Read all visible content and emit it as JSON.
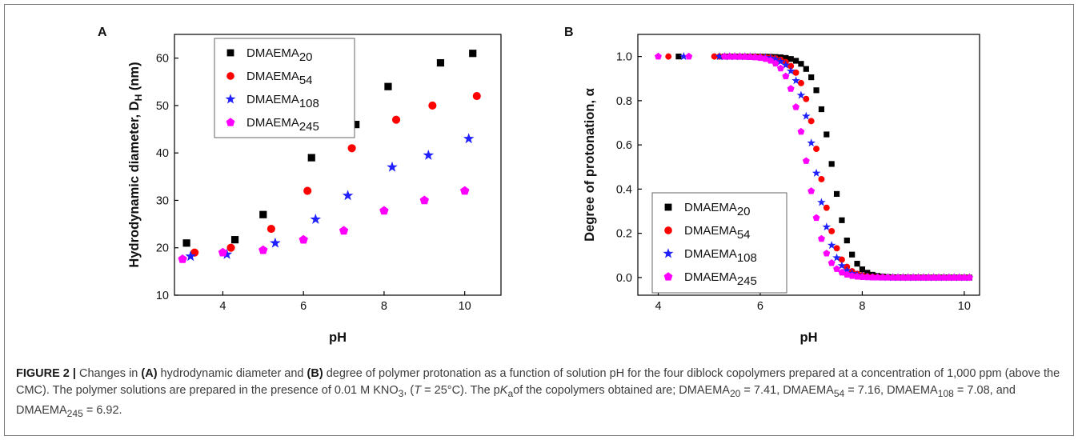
{
  "chart_data": [
    {
      "type": "scatter",
      "panel_label": "A",
      "xlabel": "pH",
      "ylabel": "Hydrodynamic diameter, D",
      "ylabel_sub": "H",
      "ylabel_unit": " (nm)",
      "xlim": [
        2.8,
        10.9
      ],
      "ylim": [
        10,
        65
      ],
      "xticks": [
        "4",
        "6",
        "8",
        "10"
      ],
      "yticks": [
        "10",
        "20",
        "30",
        "40",
        "50",
        "60"
      ],
      "legend_position": "top-left",
      "series": [
        {
          "name": "DMAEMA",
          "sub": "20",
          "marker": "square",
          "color": "#000000",
          "x": [
            3.1,
            4.3,
            5.0,
            6.2,
            7.3,
            8.1,
            9.4,
            10.2
          ],
          "y": [
            21,
            21.7,
            27,
            39,
            46,
            54,
            59,
            61
          ]
        },
        {
          "name": "DMAEMA",
          "sub": "54",
          "marker": "circle",
          "color": "#ff0000",
          "x": [
            3.3,
            4.2,
            5.2,
            6.1,
            7.2,
            8.3,
            9.2,
            10.3
          ],
          "y": [
            19,
            20,
            24,
            32,
            41,
            47,
            50,
            52
          ]
        },
        {
          "name": "DMAEMA",
          "sub": "108",
          "marker": "star",
          "color": "#1f1fff",
          "x": [
            3.2,
            4.1,
            5.3,
            6.3,
            7.1,
            8.2,
            9.1,
            10.1
          ],
          "y": [
            18.2,
            18.6,
            21,
            26,
            31,
            37,
            39.5,
            43
          ]
        },
        {
          "name": "DMAEMA",
          "sub": "245",
          "marker": "pentagon",
          "color": "#ff00ff",
          "x": [
            3.0,
            4.0,
            5.0,
            6.0,
            7.0,
            8.0,
            9.0,
            10.0
          ],
          "y": [
            17.6,
            19,
            19.5,
            21.7,
            23.6,
            27.8,
            30,
            32
          ]
        }
      ]
    },
    {
      "type": "scatter",
      "panel_label": "B",
      "xlabel": "pH",
      "ylabel": "Degree of protonation, α",
      "xlim": [
        3.6,
        10.3
      ],
      "ylim": [
        -0.08,
        1.1
      ],
      "xticks": [
        "4",
        "6",
        "8",
        "10"
      ],
      "yticks": [
        "0.0",
        "0.2",
        "0.4",
        "0.6",
        "0.8",
        "1.0"
      ],
      "legend_position": "bottom-left",
      "series": [
        {
          "name": "DMAEMA",
          "sub": "20",
          "marker": "square",
          "color": "#000000",
          "pKa": 7.41,
          "x_start": 5.3,
          "x_start_extra": [
            4.4
          ]
        },
        {
          "name": "DMAEMA",
          "sub": "54",
          "marker": "circle",
          "color": "#ff0000",
          "pKa": 7.16,
          "x_start": 5.1,
          "x_start_extra": [
            4.2
          ]
        },
        {
          "name": "DMAEMA",
          "sub": "108",
          "marker": "star",
          "color": "#1f1fff",
          "pKa": 7.08,
          "x_start": 5.2,
          "x_start_extra": [
            4.5
          ]
        },
        {
          "name": "DMAEMA",
          "sub": "245",
          "marker": "pentagon",
          "color": "#ff00ff",
          "pKa": 6.92,
          "x_start": 5.3,
          "x_start_extra": [
            4.0,
            4.6
          ]
        }
      ]
    }
  ],
  "caption": {
    "lead": "FIGURE 2 |",
    "t1": " Changes in ",
    "a": "(A)",
    "t2": " hydrodynamic diameter and ",
    "b": "(B)",
    "t3": " degree of polymer protonation as a function of solution pH for the four diblock copolymers prepared at a concentration of 1,000 ppm (above the CMC). The polymer solutions are prepared in the presence of 0.01 M KNO",
    "sub3": "3",
    "t4": ", (",
    "T": "T",
    "t5": " = 25°C). The p",
    "K": "K",
    "asub": "a",
    "t6": "of the copolymers obtained are; DMAEMA",
    "s20": "20",
    "v20": " = 7.41, DMAEMA",
    "s54": "54",
    "v54": " = 7.16, DMAEMA",
    "s108": "108",
    "v108": " = 7.08, and DMAEMA",
    "s245": "245",
    "v245": " = 6.92."
  }
}
